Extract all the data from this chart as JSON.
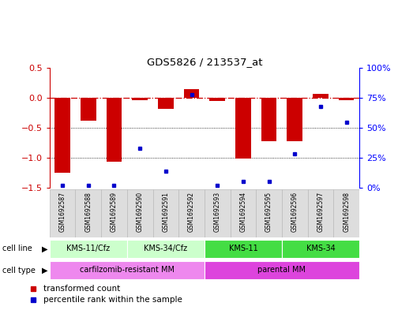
{
  "title": "GDS5826 / 213537_at",
  "samples": [
    "GSM1692587",
    "GSM1692588",
    "GSM1692589",
    "GSM1692590",
    "GSM1692591",
    "GSM1692592",
    "GSM1692593",
    "GSM1692594",
    "GSM1692595",
    "GSM1692596",
    "GSM1692597",
    "GSM1692598"
  ],
  "transformed_count": [
    -1.25,
    -0.38,
    -1.07,
    -0.03,
    -0.18,
    0.15,
    -0.05,
    -1.02,
    -0.72,
    -0.72,
    0.07,
    -0.03
  ],
  "percentile_rank": [
    2,
    2,
    2,
    33,
    14,
    78,
    2,
    5,
    5,
    28,
    68,
    55
  ],
  "ylim_left": [
    -1.5,
    0.5
  ],
  "bar_color": "#CC0000",
  "dot_color": "#0000CC",
  "ref_line_color": "#CC0000",
  "cl_groups": [
    {
      "label": "KMS-11/Cfz",
      "xstart": 0,
      "xend": 2,
      "color": "#CCFFCC"
    },
    {
      "label": "KMS-34/Cfz",
      "xstart": 3,
      "xend": 5,
      "color": "#CCFFCC"
    },
    {
      "label": "KMS-11",
      "xstart": 6,
      "xend": 8,
      "color": "#44DD44"
    },
    {
      "label": "KMS-34",
      "xstart": 9,
      "xend": 11,
      "color": "#44DD44"
    }
  ],
  "ct_groups": [
    {
      "label": "carfilzomib-resistant MM",
      "xstart": 0,
      "xend": 5,
      "color": "#EE88EE"
    },
    {
      "label": "parental MM",
      "xstart": 6,
      "xend": 11,
      "color": "#DD44DD"
    }
  ]
}
